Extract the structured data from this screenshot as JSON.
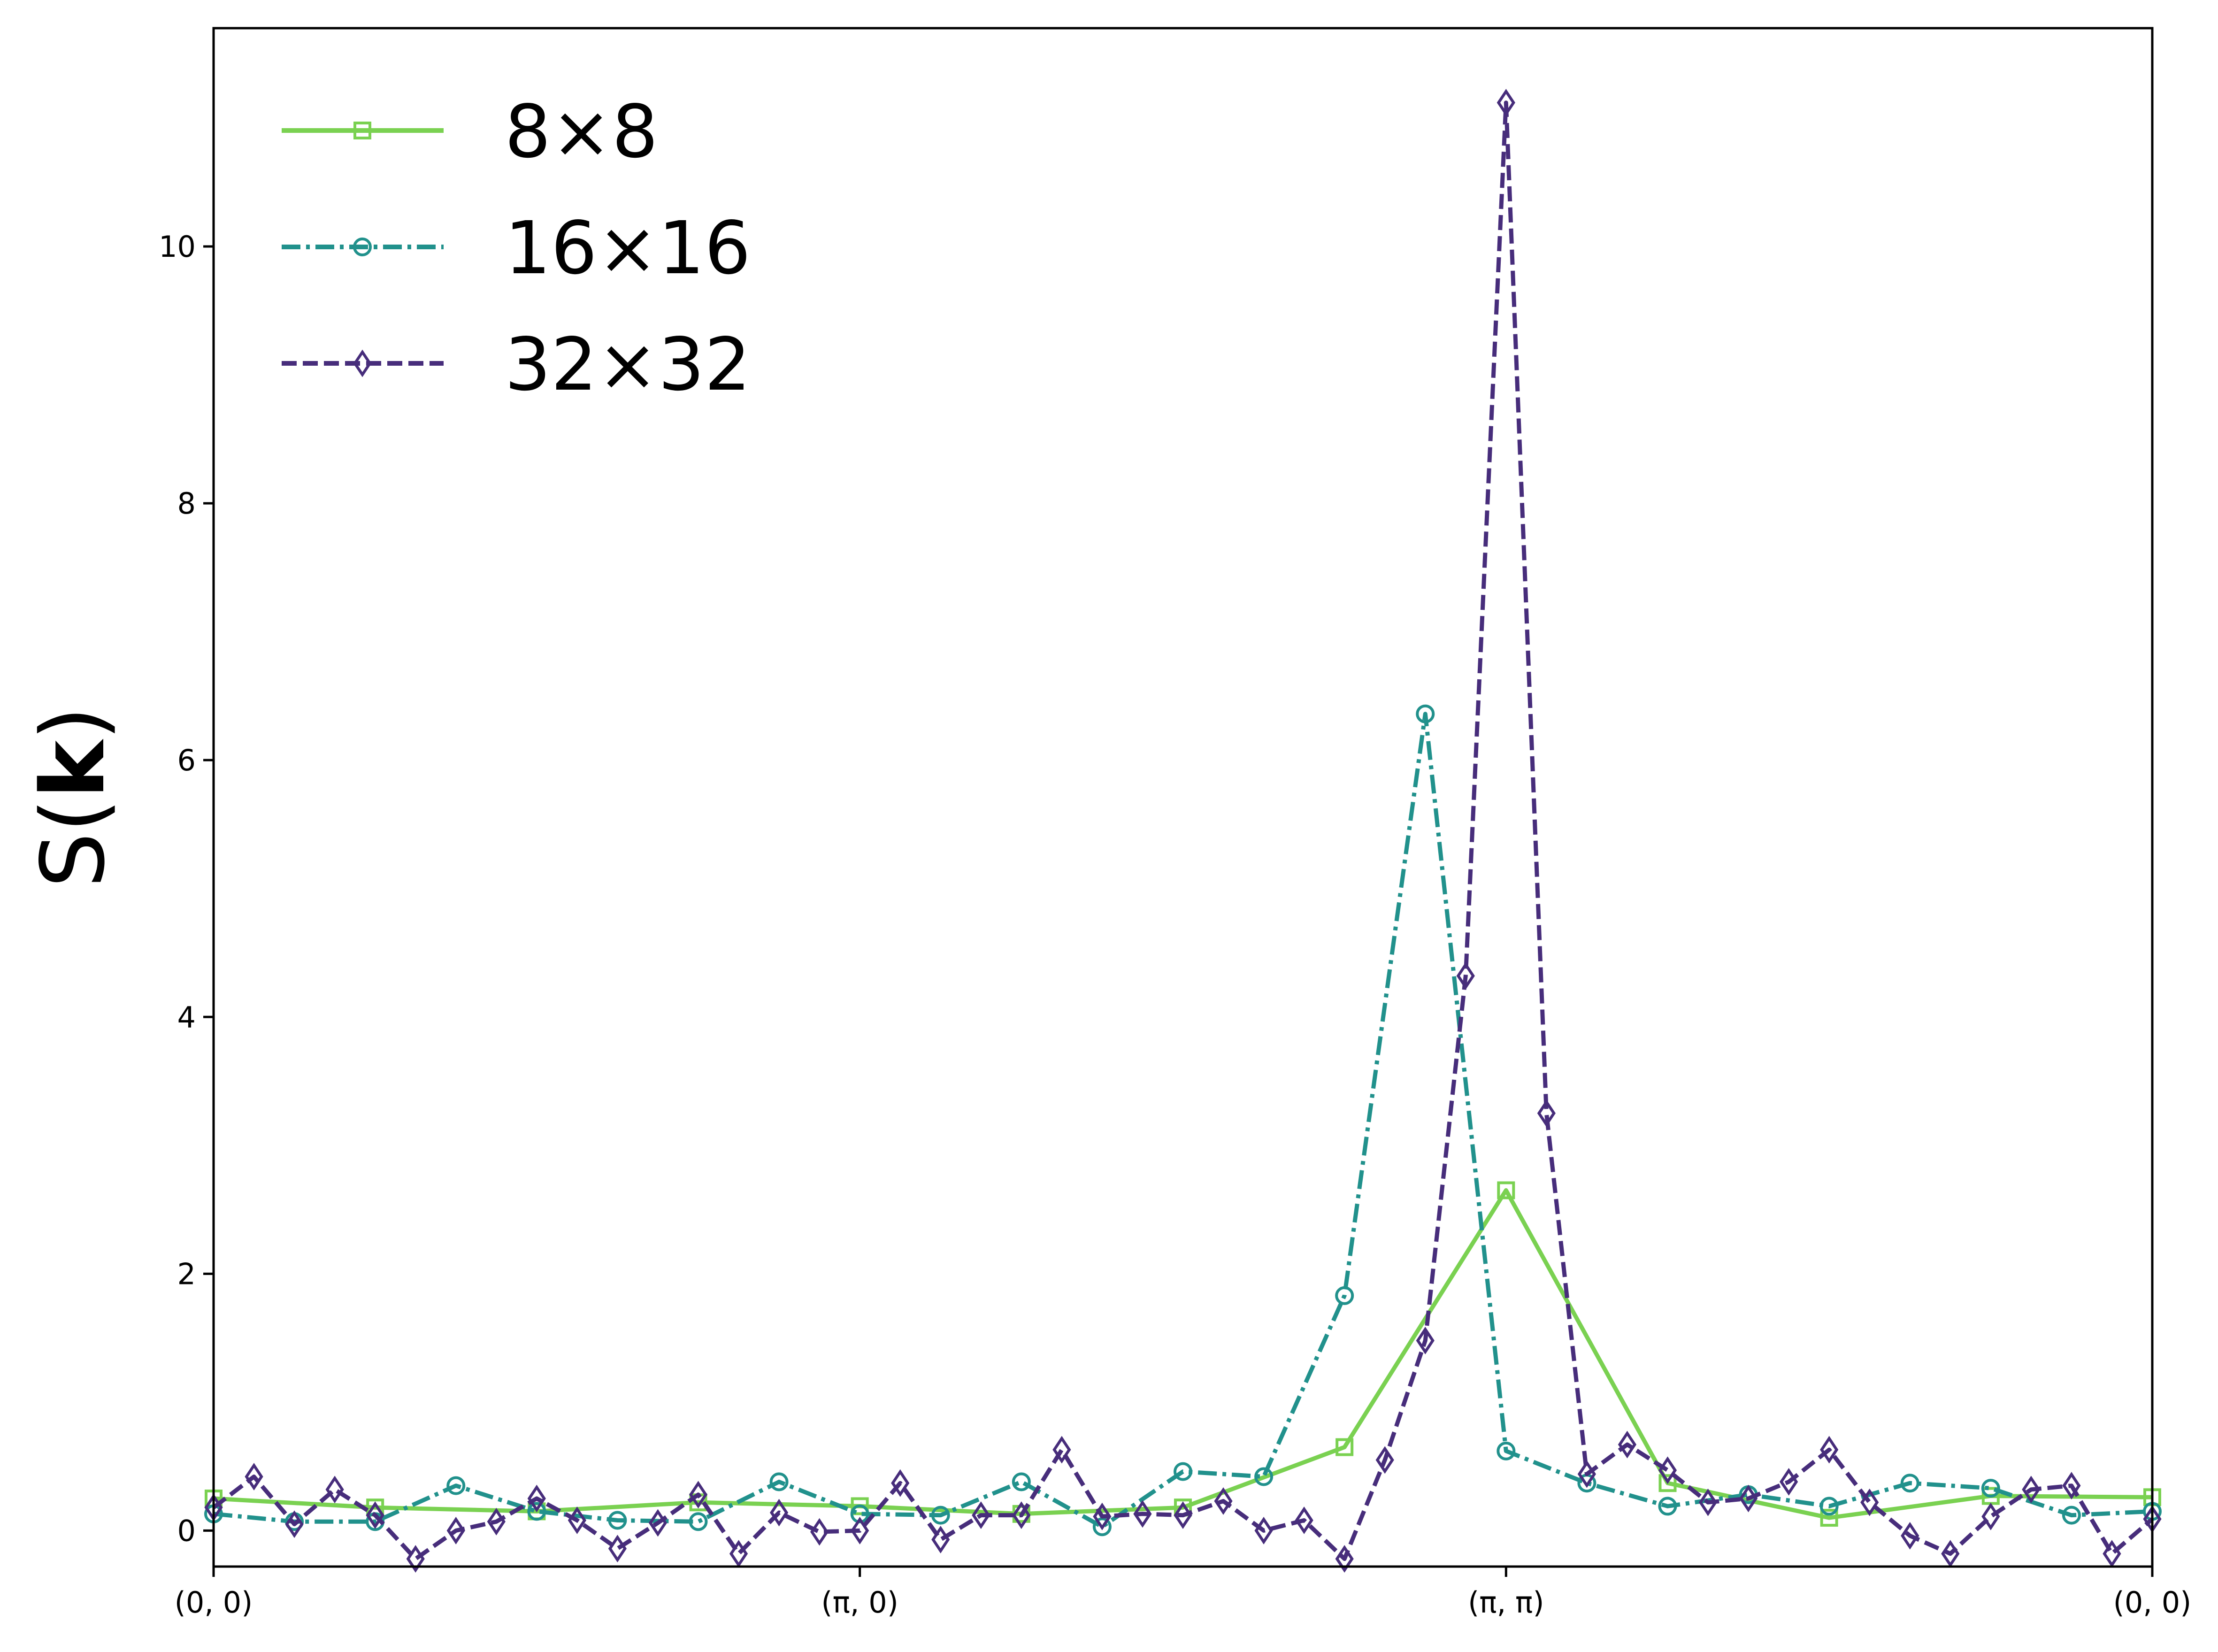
{
  "chart_data": {
    "type": "line",
    "title": "",
    "xlabel": "",
    "ylabel": "S(k)",
    "ylabel_parts": {
      "pre": "S(",
      "bold": "k",
      "post": ")"
    },
    "x_ticks": [
      "(0, 0)",
      "(π, 0)",
      "(π, π)",
      "(0, 0)"
    ],
    "x_tick_positions": [
      0,
      1,
      2,
      3
    ],
    "xlim": [
      0,
      3
    ],
    "ylim": [
      -0.28,
      11.7
    ],
    "y_ticks": [
      0,
      2,
      4,
      6,
      8,
      10
    ],
    "grid": false,
    "legend_position": "top-left",
    "series": [
      {
        "name": "8×8",
        "color": "#7ad151",
        "line_style": "solid",
        "marker": "square",
        "x": [
          0,
          0.25,
          0.5,
          0.75,
          1.0,
          1.25,
          1.5,
          1.75,
          2.0,
          2.25,
          2.5,
          2.75,
          3.0
        ],
        "y": [
          0.25,
          0.18,
          0.15,
          0.22,
          0.19,
          0.13,
          0.18,
          0.65,
          2.65,
          0.37,
          0.1,
          0.27,
          0.26
        ]
      },
      {
        "name": "16×16",
        "color": "#21918c",
        "line_style": "dashdot",
        "marker": "circle",
        "x": [
          0,
          0.125,
          0.25,
          0.375,
          0.5,
          0.625,
          0.75,
          0.875,
          1.0,
          1.125,
          1.25,
          1.375,
          1.5,
          1.625,
          1.75,
          1.875,
          2.0,
          2.125,
          2.25,
          2.375,
          2.5,
          2.625,
          2.75,
          2.875,
          3.0
        ],
        "y": [
          0.13,
          0.07,
          0.07,
          0.35,
          0.15,
          0.08,
          0.07,
          0.38,
          0.13,
          0.12,
          0.38,
          0.03,
          0.46,
          0.42,
          1.83,
          6.36,
          0.62,
          0.37,
          0.19,
          0.28,
          0.19,
          0.37,
          0.33,
          0.12,
          0.15
        ]
      },
      {
        "name": "32×32",
        "color": "#472d7b",
        "line_style": "dashed",
        "marker": "diamond",
        "x": [
          0,
          0.0625,
          0.125,
          0.1875,
          0.25,
          0.3125,
          0.375,
          0.4375,
          0.5,
          0.5625,
          0.625,
          0.6875,
          0.75,
          0.8125,
          0.875,
          0.9375,
          1.0,
          1.0625,
          1.125,
          1.1875,
          1.25,
          1.3125,
          1.375,
          1.4375,
          1.5,
          1.5625,
          1.625,
          1.6875,
          1.75,
          1.8125,
          1.875,
          1.9375,
          2.0,
          2.0625,
          2.125,
          2.1875,
          2.25,
          2.3125,
          2.375,
          2.4375,
          2.5,
          2.5625,
          2.625,
          2.6875,
          2.75,
          2.8125,
          2.875,
          2.9375,
          3.0
        ],
        "y": [
          0.18,
          0.42,
          0.05,
          0.32,
          0.12,
          -0.22,
          0.0,
          0.07,
          0.25,
          0.08,
          -0.14,
          0.06,
          0.28,
          -0.18,
          0.14,
          -0.01,
          0.0,
          0.37,
          -0.07,
          0.12,
          0.12,
          0.63,
          0.11,
          0.13,
          0.12,
          0.23,
          0.0,
          0.08,
          -0.22,
          0.55,
          1.48,
          4.32,
          11.12,
          3.25,
          0.44,
          0.67,
          0.47,
          0.22,
          0.25,
          0.38,
          0.63,
          0.22,
          -0.04,
          -0.18,
          0.11,
          0.32,
          0.35,
          -0.18,
          0.09
        ]
      }
    ]
  }
}
